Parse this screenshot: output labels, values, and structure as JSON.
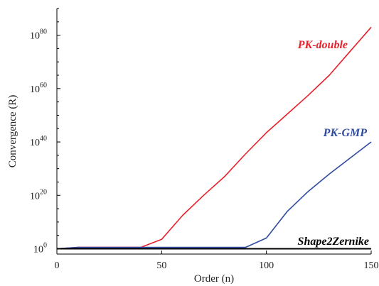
{
  "chart_data": {
    "type": "line",
    "xlabel": "Order (n)",
    "ylabel": "Convergence (R)",
    "xlim": [
      0,
      150
    ],
    "ylim_log10": [
      -2,
      90
    ],
    "y_scale": "log",
    "grid": false,
    "x_ticks": [
      {
        "value": 0,
        "label": "0"
      },
      {
        "value": 50,
        "label": "50"
      },
      {
        "value": 100,
        "label": "100"
      },
      {
        "value": 150,
        "label": "150"
      }
    ],
    "y_ticks": [
      {
        "exponent": 0,
        "base": "10",
        "exp": "0"
      },
      {
        "exponent": 20,
        "base": "10",
        "exp": "20"
      },
      {
        "exponent": 40,
        "base": "10",
        "exp": "40"
      },
      {
        "exponent": 60,
        "base": "10",
        "exp": "60"
      },
      {
        "exponent": 80,
        "base": "10",
        "exp": "80"
      }
    ],
    "series": [
      {
        "name": "PK-double",
        "color": "#e8202a",
        "x": [
          0,
          10,
          20,
          30,
          40,
          50,
          60,
          70,
          80,
          90,
          100,
          110,
          120,
          130,
          140,
          150
        ],
        "log10_y": [
          0,
          0.5,
          0.5,
          0.5,
          0.5,
          3.5,
          12.5,
          20,
          27,
          35.5,
          43.5,
          50.5,
          57.5,
          65,
          74,
          83
        ]
      },
      {
        "name": "PK-GMP",
        "color": "#2e4aa0",
        "x": [
          0,
          10,
          20,
          30,
          40,
          50,
          60,
          70,
          80,
          90,
          100,
          110,
          120,
          130,
          140,
          150
        ],
        "log10_y": [
          0,
          0.5,
          0.5,
          0.5,
          0.5,
          0.5,
          0.5,
          0.5,
          0.5,
          0.5,
          4,
          14,
          21.5,
          28,
          34,
          40
        ]
      },
      {
        "name": "Shape2Zernike",
        "color": "#000000",
        "x": [
          0,
          150
        ],
        "log10_y": [
          0,
          0
        ]
      }
    ]
  }
}
